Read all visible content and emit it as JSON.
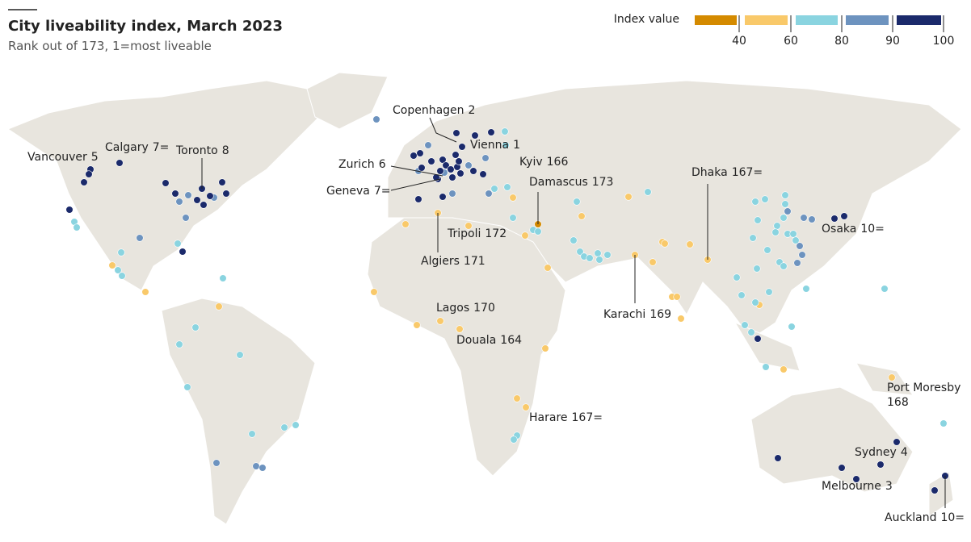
{
  "header": {
    "title": "City liveability index, March 2023",
    "subtitle": "Rank out of 173, 1=most liveable"
  },
  "legend": {
    "title": "Index value",
    "colors": [
      "#d48a00",
      "#f9c96a",
      "#8ad4e0",
      "#6d93bf",
      "#1b2a6b"
    ],
    "ticks": [
      "40",
      "60",
      "80",
      "90",
      "100"
    ]
  },
  "cities": [
    {
      "name": "Vancouver",
      "rank": "5"
    },
    {
      "name": "Calgary",
      "rank": "7="
    },
    {
      "name": "Toronto",
      "rank": "8"
    },
    {
      "name": "Copenhagen",
      "rank": "2"
    },
    {
      "name": "Vienna",
      "rank": "1"
    },
    {
      "name": "Kyiv",
      "rank": "166"
    },
    {
      "name": "Zurich",
      "rank": "6"
    },
    {
      "name": "Geneva",
      "rank": "7="
    },
    {
      "name": "Damascus",
      "rank": "173"
    },
    {
      "name": "Dhaka",
      "rank": "167="
    },
    {
      "name": "Osaka",
      "rank": "10="
    },
    {
      "name": "Tripoli",
      "rank": "172"
    },
    {
      "name": "Algiers",
      "rank": "171"
    },
    {
      "name": "Lagos",
      "rank": "170"
    },
    {
      "name": "Douala",
      "rank": "164"
    },
    {
      "name": "Karachi",
      "rank": "169"
    },
    {
      "name": "Harare",
      "rank": "167="
    },
    {
      "name": "Port Moresby",
      "rank": "168"
    },
    {
      "name": "Sydney",
      "rank": "4"
    },
    {
      "name": "Melbourne",
      "rank": "3"
    },
    {
      "name": "Auckland",
      "rank": "10="
    }
  ]
}
